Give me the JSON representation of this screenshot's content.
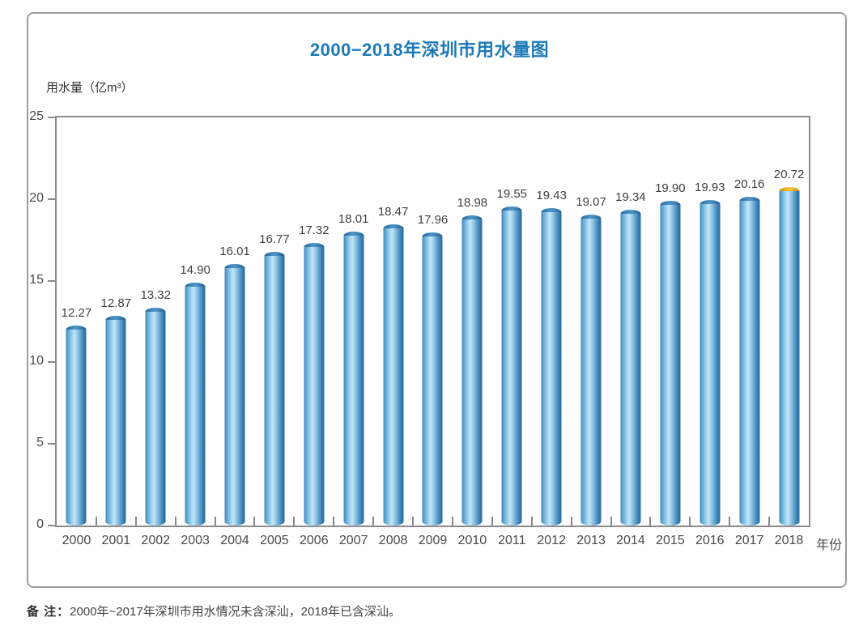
{
  "page": {
    "title": "2000−2018年深圳市用水量图",
    "y_axis_title": "用水量（亿m³）",
    "x_axis_title": "年份",
    "note_label": "备 注：",
    "note_text": "2000年~2017年深圳市用水情况未含深汕，2018年已含深汕。"
  },
  "colors": {
    "title_blue": "#1d7ab8",
    "axis_gray": "#8a8a8a",
    "card_border": "#9c9c9c",
    "bar_edge_blue": "#2e78ae",
    "bar_highlight_blue": "#c2e6f8",
    "bar_cap_blue": "#2a689c",
    "bar_cap_orange_2018": "#eead1e",
    "label_text": "#3f3f3f"
  },
  "chart_data": {
    "type": "bar",
    "title": "2000−2018年深圳市用水量图",
    "xlabel": "年份",
    "ylabel": "用水量（亿m³）",
    "categories": [
      "2000",
      "2001",
      "2002",
      "2003",
      "2004",
      "2005",
      "2006",
      "2007",
      "2008",
      "2009",
      "2010",
      "2011",
      "2012",
      "2013",
      "2014",
      "2015",
      "2016",
      "2017",
      "2018"
    ],
    "values": [
      12.27,
      12.87,
      13.32,
      14.9,
      16.01,
      16.77,
      17.32,
      18.01,
      18.47,
      17.96,
      18.98,
      19.55,
      19.43,
      19.07,
      19.34,
      19.9,
      19.93,
      20.16,
      20.72
    ],
    "value_labels": [
      "12.27",
      "12.87",
      "13.32",
      "14.90",
      "16.01",
      "16.77",
      "17.32",
      "18.01",
      "18.47",
      "17.96",
      "18.98",
      "19.55",
      "19.43",
      "19.07",
      "19.34",
      "19.90",
      "19.93",
      "20.16",
      "20.72"
    ],
    "ylim": [
      0,
      25
    ],
    "yticks": [
      0,
      5,
      10,
      15,
      20,
      25
    ],
    "grid": false,
    "legend": null,
    "highlight": {
      "category": "2018",
      "cap_color": "orange",
      "note": "2018年已含深汕"
    }
  }
}
